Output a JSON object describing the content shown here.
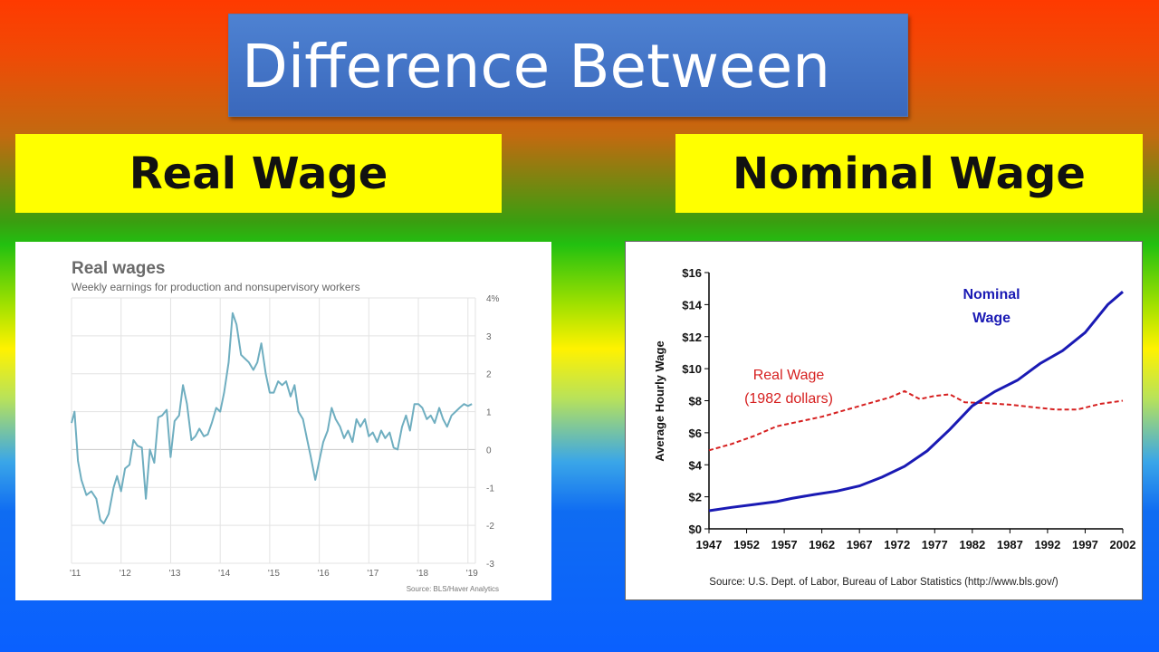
{
  "title": "Difference Between",
  "left_label": "Real Wage",
  "right_label": "Nominal Wage",
  "chart_data": [
    {
      "type": "line",
      "title": "Real wages",
      "subtitle": "Weekly earnings for production and nonsupervisory workers",
      "source": "Source: BLS/Haver Analytics",
      "x_ticks": [
        "'11",
        "'12",
        "'13",
        "'14",
        "'15",
        "'16",
        "'17",
        "'18",
        "'19"
      ],
      "y_ticks": [
        "4%",
        "3",
        "2",
        "1",
        "0",
        "-1",
        "-2",
        "-3"
      ],
      "ylim": [
        -3,
        4
      ],
      "xlim": [
        2011,
        2019.15
      ],
      "grid": true,
      "colors": {
        "line": "#6faec0",
        "grid": "#e3e3e3"
      },
      "series": [
        {
          "x": [
            2011.0,
            2011.06,
            2011.13,
            2011.2,
            2011.3,
            2011.4,
            2011.5,
            2011.58,
            2011.65,
            2011.75,
            2011.85,
            2011.92,
            2012.0,
            2012.08,
            2012.17,
            2012.25,
            2012.33,
            2012.42,
            2012.5,
            2012.58,
            2012.67,
            2012.75,
            2012.83,
            2012.92,
            2013.0,
            2013.08,
            2013.17,
            2013.25,
            2013.33,
            2013.42,
            2013.5,
            2013.58,
            2013.67,
            2013.75,
            2013.83,
            2013.92,
            2014.0,
            2014.08,
            2014.17,
            2014.25,
            2014.33,
            2014.42,
            2014.5,
            2014.58,
            2014.67,
            2014.75,
            2014.83,
            2014.92,
            2015.0,
            2015.08,
            2015.17,
            2015.25,
            2015.33,
            2015.42,
            2015.5,
            2015.58,
            2015.67,
            2015.75,
            2015.83,
            2015.92,
            2016.0,
            2016.08,
            2016.17,
            2016.25,
            2016.33,
            2016.42,
            2016.5,
            2016.58,
            2016.67,
            2016.75,
            2016.83,
            2016.92,
            2017.0,
            2017.08,
            2017.17,
            2017.25,
            2017.33,
            2017.42,
            2017.5,
            2017.58,
            2017.67,
            2017.75,
            2017.83,
            2017.92,
            2018.0,
            2018.08,
            2018.17,
            2018.25,
            2018.33,
            2018.42,
            2018.5,
            2018.58,
            2018.67,
            2018.75,
            2018.83,
            2018.92,
            2019.0,
            2019.08
          ],
          "y": [
            0.7,
            1.0,
            -0.3,
            -0.8,
            -1.2,
            -1.1,
            -1.3,
            -1.85,
            -1.95,
            -1.7,
            -1.0,
            -0.7,
            -1.1,
            -0.5,
            -0.4,
            0.25,
            0.1,
            0.05,
            -1.3,
            0.0,
            -0.35,
            0.85,
            0.9,
            1.05,
            -0.2,
            0.75,
            0.9,
            1.7,
            1.2,
            0.25,
            0.35,
            0.55,
            0.35,
            0.4,
            0.7,
            1.1,
            1.0,
            1.5,
            2.3,
            3.6,
            3.3,
            2.5,
            2.4,
            2.3,
            2.1,
            2.3,
            2.8,
            2.0,
            1.5,
            1.5,
            1.8,
            1.7,
            1.8,
            1.4,
            1.7,
            1.0,
            0.8,
            0.3,
            -0.2,
            -0.8,
            -0.3,
            0.2,
            0.5,
            1.1,
            0.8,
            0.6,
            0.3,
            0.5,
            0.2,
            0.8,
            0.6,
            0.8,
            0.35,
            0.45,
            0.2,
            0.5,
            0.3,
            0.45,
            0.05,
            0.0,
            0.6,
            0.9,
            0.5,
            1.2,
            1.2,
            1.1,
            0.8,
            0.9,
            0.7,
            1.1,
            0.8,
            0.6,
            0.9,
            1.0,
            1.1,
            1.2,
            1.15,
            1.2
          ]
        }
      ]
    },
    {
      "type": "line",
      "ylabel": "Average Hourly Wage",
      "x_ticks": [
        "1947",
        "1952",
        "1957",
        "1962",
        "1967",
        "1972",
        "1977",
        "1982",
        "1987",
        "1992",
        "1997",
        "2002"
      ],
      "y_ticks": [
        "$16",
        "$14",
        "$12",
        "$10",
        "$8",
        "$6",
        "$4",
        "$2",
        "$0"
      ],
      "ylim": [
        0,
        16
      ],
      "xlim": [
        1947,
        2002
      ],
      "grid": false,
      "source": "Source: U.S. Dept. of Labor, Bureau of Labor Statistics (http://www.bls.gov/)",
      "series": [
        {
          "name": "Nominal Wage",
          "label_lines": [
            "Nominal",
            "Wage"
          ],
          "color": "#1a1ab4",
          "dash": false,
          "x": [
            1947,
            1950,
            1953,
            1956,
            1958,
            1961,
            1964,
            1967,
            1970,
            1973,
            1976,
            1979,
            1982,
            1985,
            1988,
            1991,
            1994,
            1997,
            2000,
            2002
          ],
          "y": [
            1.13,
            1.34,
            1.52,
            1.7,
            1.9,
            2.14,
            2.36,
            2.68,
            3.23,
            3.9,
            4.87,
            6.2,
            7.68,
            8.57,
            9.28,
            10.32,
            11.12,
            12.26,
            14.0,
            14.8
          ]
        },
        {
          "name": "Real Wage",
          "label_lines": [
            "Real Wage",
            "(1982 dollars)"
          ],
          "color": "#d62020",
          "dash": true,
          "x": [
            1947,
            1950,
            1953,
            1956,
            1959,
            1962,
            1965,
            1968,
            1971,
            1973,
            1975,
            1977,
            1979,
            1981,
            1984,
            1987,
            1990,
            1993,
            1996,
            1999,
            2002
          ],
          "y": [
            4.9,
            5.3,
            5.8,
            6.4,
            6.7,
            7.0,
            7.4,
            7.8,
            8.2,
            8.6,
            8.1,
            8.3,
            8.4,
            7.9,
            7.85,
            7.75,
            7.6,
            7.45,
            7.45,
            7.8,
            8.0
          ]
        }
      ]
    }
  ]
}
